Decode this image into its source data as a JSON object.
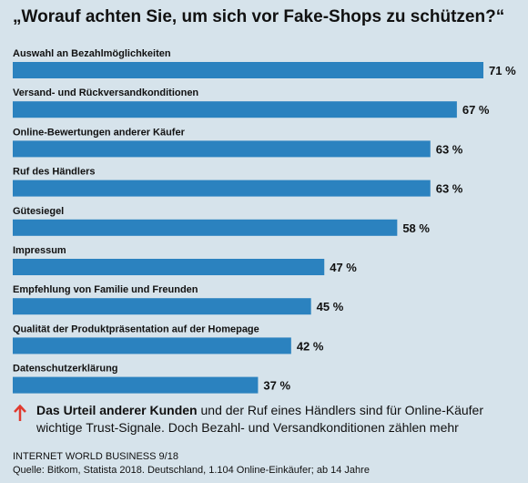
{
  "title": "„Worauf achten Sie, um sich vor Fake-Shops zu schützen?“",
  "chart_data": {
    "type": "bar",
    "orientation": "horizontal",
    "categories": [
      "Auswahl an Bezahlmöglichkeiten",
      "Versand- und Rückversandkonditionen",
      "Online-Bewertungen anderer Käufer",
      "Ruf des Händlers",
      "Gütesiegel",
      "Impressum",
      "Empfehlung von Familie und Freunden",
      "Qualität der Produktpräsentation auf der Homepage",
      "Datenschutzerklärung"
    ],
    "values": [
      71,
      67,
      63,
      63,
      58,
      47,
      45,
      42,
      37
    ],
    "value_labels": [
      "71 %",
      "67 %",
      "63 %",
      "63 %",
      "58 %",
      "47 %",
      "45 %",
      "42 %",
      "37 %"
    ],
    "unit": "%",
    "bar_color": "#2b82bf",
    "background_color": "#d6e3eb",
    "grid": false
  },
  "note": {
    "icon": "up-arrow-icon",
    "icon_color": "#e03a2f",
    "bold_text": "Das Urteil anderer Kunden",
    "rest_text": " und der Ruf eines Händlers sind für Online-Käufer wichtige Trust-Signale. Doch Bezahl- und Versandkonditionen zählen mehr"
  },
  "source": {
    "line1": "INTERNET WORLD BUSINESS 9/18",
    "line2": "Quelle: Bitkom, Statista 2018. Deutschland, 1.104 Online-Einkäufer; ab 14 Jahre"
  }
}
